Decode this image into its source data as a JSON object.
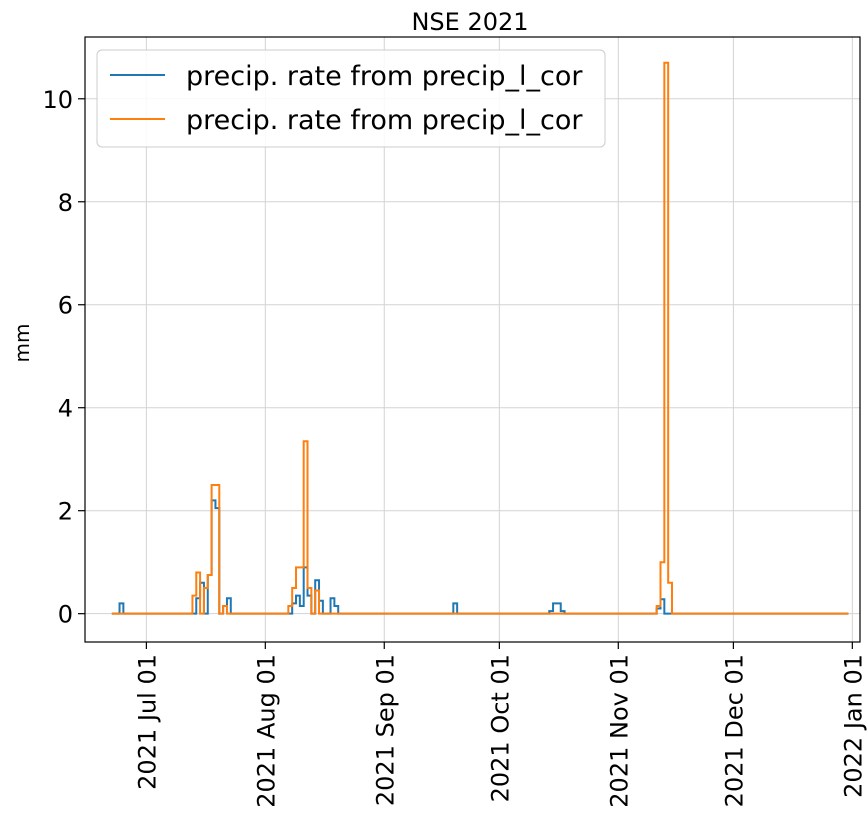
{
  "chart_data": {
    "type": "line",
    "step": true,
    "title": "NSE 2021",
    "xlabel": "",
    "ylabel": "mm",
    "x_range": [
      "2021-06-15",
      "2022-01-03"
    ],
    "ylim": [
      -0.55,
      11.2
    ],
    "y_ticks": [
      0,
      2,
      4,
      6,
      8,
      10
    ],
    "x_ticks": [
      "2021-07-01",
      "2021-08-01",
      "2021-09-01",
      "2021-10-01",
      "2021-11-01",
      "2021-12-01",
      "2022-01-01"
    ],
    "x_tick_labels": [
      "2021 Jul 01",
      "2021 Aug 01",
      "2021 Sep 01",
      "2021 Oct 01",
      "2021 Nov 01",
      "2021 Dec 01",
      "2022 Jan 01"
    ],
    "grid": true,
    "legend_position": "top-left",
    "series": [
      {
        "name": "precip. rate from precip_l_cor",
        "color": "#1f77b4",
        "points": [
          [
            "2021-06-22",
            0
          ],
          [
            "2021-06-24",
            0.2
          ],
          [
            "2021-06-25",
            0
          ],
          [
            "2021-07-14",
            0.3
          ],
          [
            "2021-07-15",
            0.6
          ],
          [
            "2021-07-16",
            0
          ],
          [
            "2021-07-17",
            0.75
          ],
          [
            "2021-07-18",
            2.2
          ],
          [
            "2021-07-19",
            2.05
          ],
          [
            "2021-07-20",
            0
          ],
          [
            "2021-07-21",
            0.15
          ],
          [
            "2021-07-22",
            0.3
          ],
          [
            "2021-07-23",
            0
          ],
          [
            "2021-08-08",
            0.2
          ],
          [
            "2021-08-09",
            0.35
          ],
          [
            "2021-08-10",
            0.15
          ],
          [
            "2021-08-11",
            0.9
          ],
          [
            "2021-08-12",
            0.35
          ],
          [
            "2021-08-13",
            0
          ],
          [
            "2021-08-14",
            0.65
          ],
          [
            "2021-08-15",
            0.25
          ],
          [
            "2021-08-16",
            0
          ],
          [
            "2021-08-18",
            0.3
          ],
          [
            "2021-08-19",
            0.15
          ],
          [
            "2021-08-20",
            0
          ],
          [
            "2021-09-19",
            0.2
          ],
          [
            "2021-09-20",
            0
          ],
          [
            "2021-10-14",
            0.05
          ],
          [
            "2021-10-15",
            0.2
          ],
          [
            "2021-10-17",
            0.05
          ],
          [
            "2021-10-18",
            0
          ],
          [
            "2021-11-11",
            0.1
          ],
          [
            "2021-11-12",
            0.28
          ],
          [
            "2021-11-13",
            0
          ],
          [
            "2021-12-31",
            0
          ]
        ]
      },
      {
        "name": "precip. rate from precip_l_cor",
        "color": "#ff7f0e",
        "points": [
          [
            "2021-06-22",
            0
          ],
          [
            "2021-07-13",
            0.35
          ],
          [
            "2021-07-14",
            0.8
          ],
          [
            "2021-07-15",
            0
          ],
          [
            "2021-07-16",
            0.5
          ],
          [
            "2021-07-17",
            0.75
          ],
          [
            "2021-07-18",
            2.5
          ],
          [
            "2021-07-20",
            0
          ],
          [
            "2021-07-21",
            0.15
          ],
          [
            "2021-07-22",
            0
          ],
          [
            "2021-08-07",
            0.15
          ],
          [
            "2021-08-08",
            0.5
          ],
          [
            "2021-08-09",
            0.9
          ],
          [
            "2021-08-11",
            3.35
          ],
          [
            "2021-08-12",
            0.5
          ],
          [
            "2021-08-13",
            0
          ],
          [
            "2021-08-14",
            0.45
          ],
          [
            "2021-08-15",
            0
          ],
          [
            "2021-11-11",
            0.15
          ],
          [
            "2021-11-12",
            1.0
          ],
          [
            "2021-11-13",
            10.7
          ],
          [
            "2021-11-14",
            0.6
          ],
          [
            "2021-11-15",
            0
          ],
          [
            "2021-12-31",
            0
          ]
        ]
      }
    ]
  }
}
